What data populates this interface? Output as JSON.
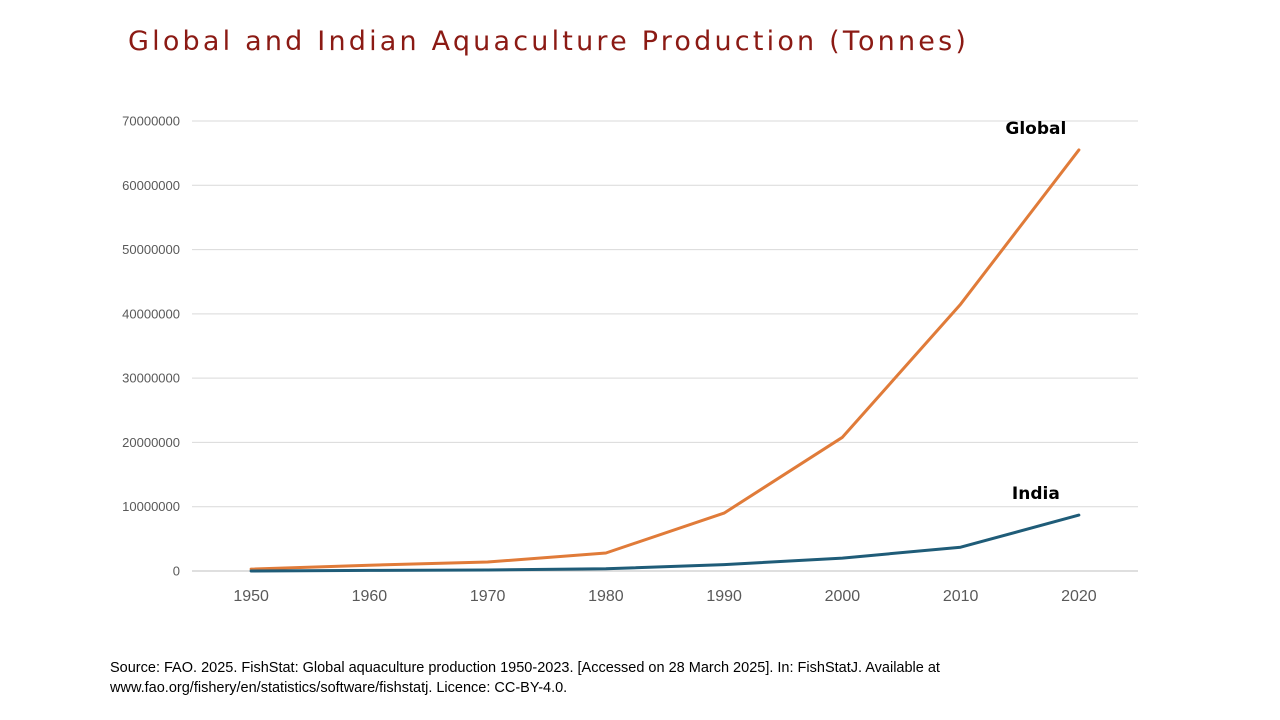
{
  "title": "Global and Indian Aquaculture Production (Tonnes)",
  "source_lines": [
    "Source: FAO. 2025. FishStat: Global aquaculture production 1950-2023. [Accessed on 28 March 2025]. In: FishStatJ. Available at",
    "www.fao.org/fishery/en/statistics/software/fishstatj. Licence: CC-BY-4.0."
  ],
  "chart_data": {
    "type": "line",
    "title": "Global and Indian Aquaculture Production (Tonnes)",
    "x": [
      1950,
      1960,
      1970,
      1980,
      1990,
      2000,
      2010,
      2020
    ],
    "x_tick_labels": [
      "1950",
      "1960",
      "1970",
      "1980",
      "1990",
      "2000",
      "2010",
      "2020"
    ],
    "y_tick_labels": [
      "0",
      "10000000",
      "20000000",
      "30000000",
      "40000000",
      "50000000",
      "60000000",
      "70000000"
    ],
    "ylim": [
      0,
      70000000
    ],
    "grid": true,
    "legend": "none (inline labels)",
    "series": [
      {
        "name": "Global",
        "color": "#e07b39",
        "values": [
          300000,
          900000,
          1400000,
          2800000,
          9000000,
          20800000,
          41500000,
          65500000
        ]
      },
      {
        "name": "India",
        "color": "#1f5c78",
        "values": [
          0,
          100000,
          150000,
          350000,
          1000000,
          2000000,
          3700000,
          8700000
        ]
      }
    ]
  }
}
